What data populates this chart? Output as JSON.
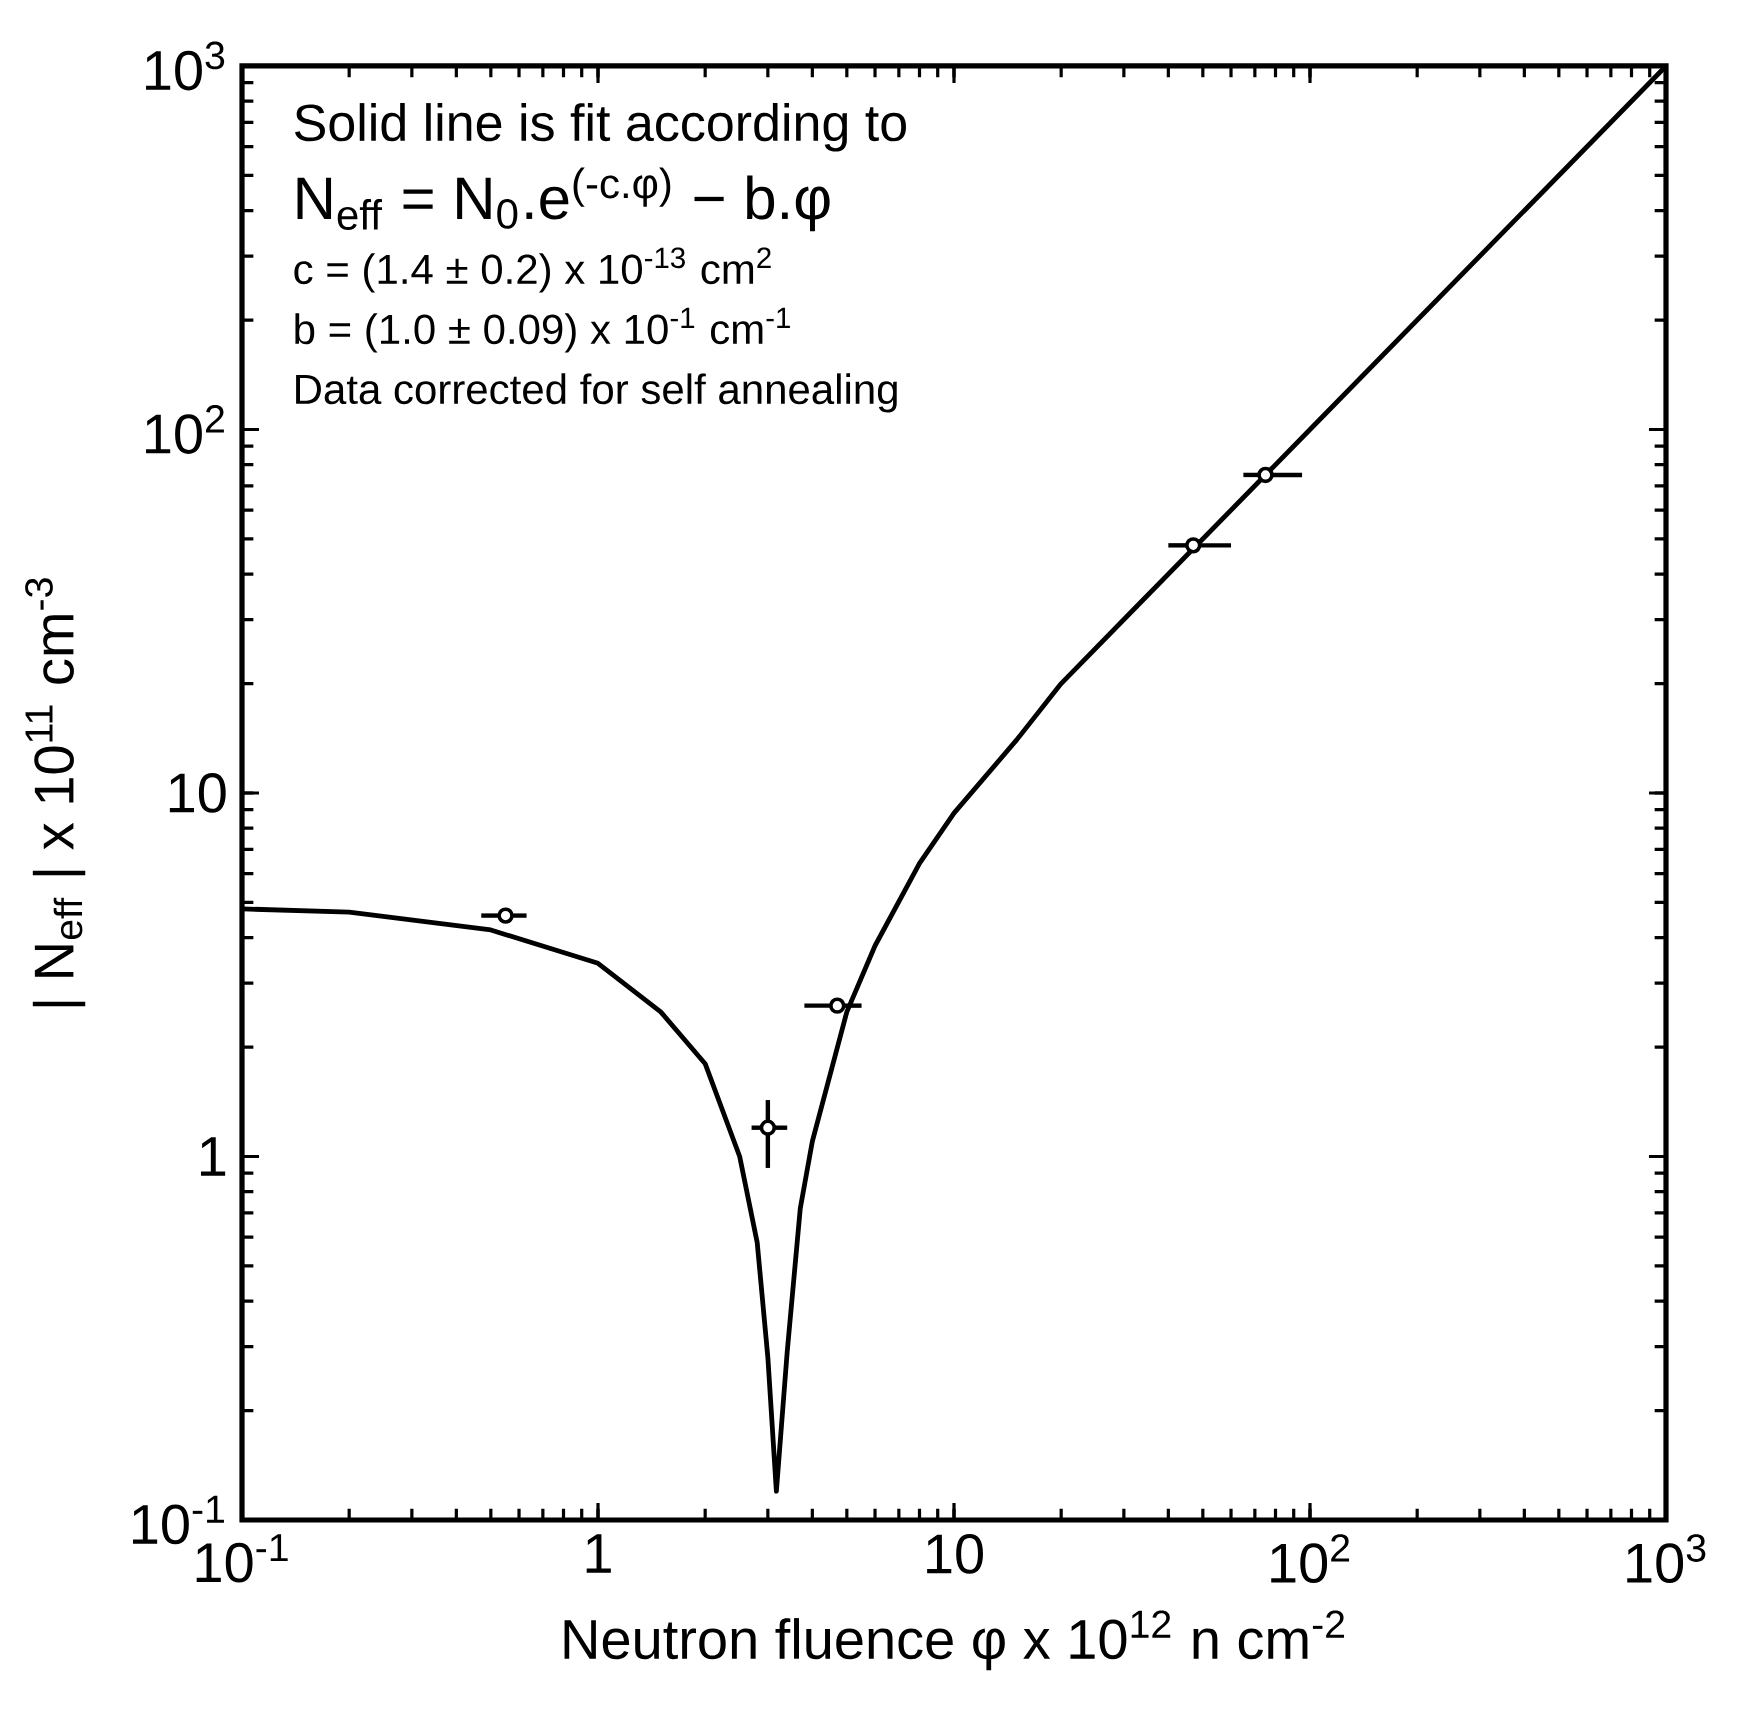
{
  "chart_data": {
    "type": "scatter",
    "xlabel": "Neutron fluence φ x 10$^{12}$ n cm$^{-2}$",
    "ylabel": "| N$_{eff}$ | x 10$^{11}$ cm$^{-3}$",
    "annotations": [
      "Solid line is fit according to",
      "N$_{eff}$ = N$_{0}$.e$^{(-c.φ)}$ − b.φ",
      "c = (1.4 ± 0.2) x 10$^{-13}$ cm$^{2}$",
      "b = (1.0 ± 0.09) x 10$^{-1}$ cm$^{-1}$",
      "Data corrected for self annealing"
    ],
    "log": "xy",
    "xlim": [
      0.1,
      1000
    ],
    "ylim": [
      0.1,
      1000
    ],
    "xticks": [
      {
        "value": 0.1,
        "label": "10$^{-1}$"
      },
      1,
      10,
      {
        "value": 100,
        "label": "10$^{2}$"
      },
      {
        "value": 1000,
        "label": "10$^{3}$"
      }
    ],
    "yticks": [
      {
        "value": 0.1,
        "label": "10$^{-1}$"
      },
      1,
      10,
      {
        "value": 100,
        "label": "10$^{2}$"
      },
      {
        "value": 1000,
        "label": "10$^{3}$"
      }
    ],
    "grid": false,
    "series": [
      {
        "type": "line",
        "color": "#000000",
        "marker": "none",
        "line_style": "solid",
        "x": [
          0.1,
          0.2,
          0.5,
          1,
          1.5,
          2,
          2.5,
          2.8,
          3.0,
          3.17,
          3.4,
          3.7,
          4,
          5,
          6,
          8,
          10,
          15,
          20,
          30,
          100,
          1000
        ],
        "values": [
          4.8,
          4.7,
          4.2,
          3.4,
          2.5,
          1.8,
          1.0,
          0.58,
          0.28,
          0.12,
          0.29,
          0.72,
          1.1,
          2.5,
          3.8,
          6.4,
          8.8,
          14,
          20,
          30,
          100,
          1000
        ]
      },
      {
        "color": "#000000",
        "marker": "circle",
        "x": [
          0.55,
          3.0,
          4.7,
          47,
          75
        ],
        "values": [
          4.6,
          1.2,
          2.6,
          48,
          75
        ],
        "xerrors": [
          [
            0.47,
            0.63
          ],
          [
            2.7,
            3.4
          ],
          [
            3.8,
            5.5
          ],
          [
            40,
            60
          ],
          [
            65,
            95
          ]
        ],
        "errors": [
          null,
          [
            0.93,
            1.43
          ],
          null,
          null,
          null
        ]
      }
    ]
  }
}
